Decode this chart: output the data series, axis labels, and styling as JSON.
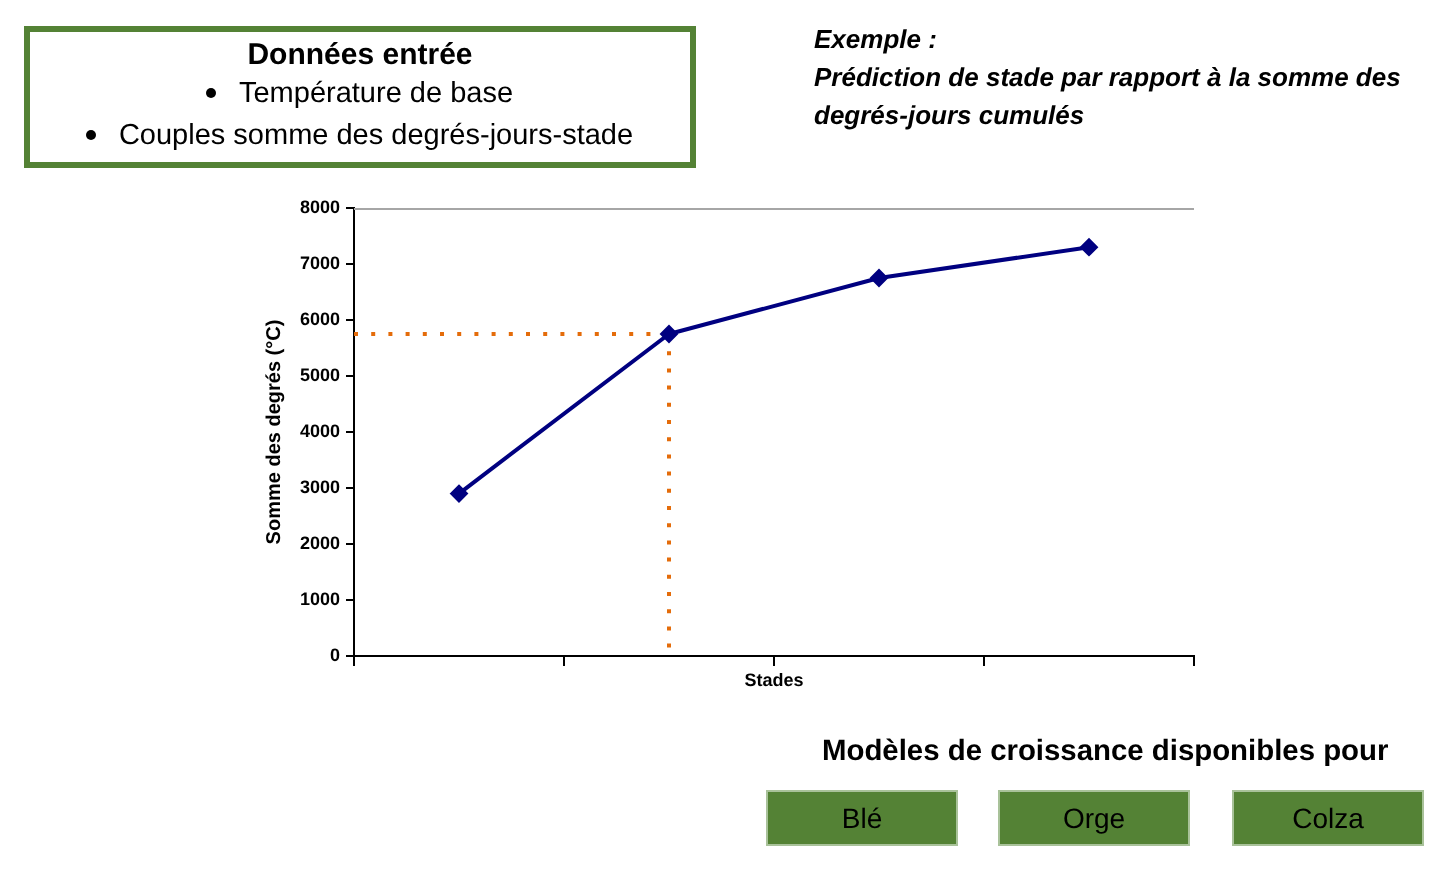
{
  "chart_data": {
    "type": "line",
    "xlabel": "Stades",
    "ylabel": "Somme des degrés (°C)",
    "categories": [
      null,
      null,
      null,
      null
    ],
    "values": [
      2900,
      5750,
      6750,
      7300
    ],
    "color": "#000080",
    "ylim": [
      0,
      8000
    ],
    "yticks": [
      0,
      1000,
      2000,
      3000,
      4000,
      5000,
      6000,
      7000,
      8000
    ],
    "tick_labels": "y",
    "marker": "diamond",
    "ref_lines": [
      {
        "axis": "y",
        "value": 5750,
        "color": "#e46c0a",
        "line_style": "dotted"
      }
    ],
    "annotations": [
      "Données entrée",
      "Température de base",
      "Couples somme des degrés-jours-stade",
      "Exemple :",
      "Prédiction de stade par rapport à la somme des degrés-jours cumulés",
      "Modèles de croissance disponibles pour",
      "Blé",
      "Orge",
      "Colza"
    ]
  }
}
